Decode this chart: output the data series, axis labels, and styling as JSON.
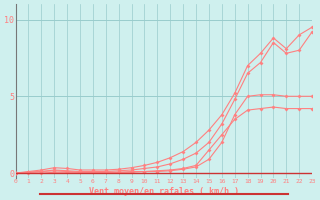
{
  "xlabel": "Vent moyen/en rafales ( km/h )",
  "background_color": "#cff0ee",
  "line_color": "#ff8080",
  "grid_color": "#99cccc",
  "x_ticks": [
    0,
    1,
    2,
    3,
    4,
    5,
    6,
    7,
    8,
    9,
    10,
    11,
    12,
    13,
    14,
    15,
    16,
    17,
    18,
    19,
    20,
    21,
    22,
    23
  ],
  "y_ticks": [
    0,
    5,
    10
  ],
  "xlim": [
    0,
    23
  ],
  "ylim": [
    -0.3,
    11
  ],
  "line1_x": [
    0,
    1,
    2,
    3,
    4,
    5,
    6,
    7,
    8,
    9,
    10,
    11,
    12,
    13,
    14,
    15,
    16,
    17,
    18,
    19,
    20,
    21,
    22,
    23
  ],
  "line1_y": [
    0.0,
    0.0,
    0.0,
    0.05,
    0.05,
    0.05,
    0.05,
    0.05,
    0.05,
    0.1,
    0.1,
    0.15,
    0.2,
    0.3,
    0.5,
    1.5,
    2.5,
    3.5,
    4.1,
    4.2,
    4.3,
    4.2,
    4.2,
    4.2
  ],
  "line2_x": [
    0,
    1,
    2,
    3,
    4,
    5,
    6,
    7,
    8,
    9,
    10,
    11,
    12,
    13,
    14,
    15,
    16,
    17,
    18,
    19,
    20,
    21,
    22,
    23
  ],
  "line2_y": [
    0.0,
    0.05,
    0.1,
    0.15,
    0.1,
    0.05,
    0.05,
    0.05,
    0.05,
    0.05,
    0.1,
    0.1,
    0.15,
    0.25,
    0.4,
    0.9,
    2.0,
    3.8,
    5.0,
    5.1,
    5.1,
    5.0,
    5.0,
    5.0
  ],
  "line3_x": [
    0,
    1,
    2,
    3,
    4,
    5,
    6,
    7,
    8,
    9,
    10,
    11,
    12,
    13,
    14,
    15,
    16,
    17,
    18,
    19,
    20,
    21,
    22,
    23
  ],
  "line3_y": [
    0.0,
    0.05,
    0.1,
    0.2,
    0.15,
    0.1,
    0.1,
    0.1,
    0.15,
    0.2,
    0.3,
    0.4,
    0.6,
    0.9,
    1.3,
    2.0,
    3.2,
    4.8,
    6.5,
    7.2,
    8.5,
    7.8,
    8.0,
    9.2
  ],
  "line4_x": [
    0,
    1,
    2,
    3,
    4,
    5,
    6,
    7,
    8,
    9,
    10,
    11,
    12,
    13,
    14,
    15,
    16,
    17,
    18,
    19,
    20,
    21,
    22,
    23
  ],
  "line4_y": [
    0.0,
    0.1,
    0.2,
    0.35,
    0.3,
    0.2,
    0.2,
    0.2,
    0.25,
    0.35,
    0.5,
    0.7,
    1.0,
    1.4,
    2.0,
    2.8,
    3.8,
    5.2,
    7.0,
    7.8,
    8.8,
    8.1,
    9.0,
    9.5
  ]
}
